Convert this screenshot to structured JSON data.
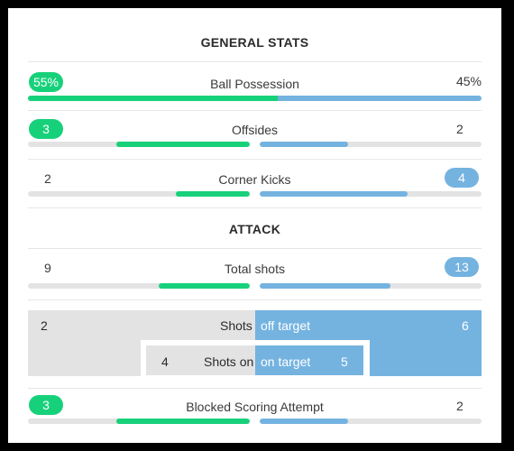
{
  "general": {
    "title": "GENERAL STATS",
    "possession": {
      "label": "Ball Possession",
      "home": "55%",
      "away": "45%",
      "home_share": 0.55
    },
    "offsides": {
      "label": "Offsides",
      "home": "3",
      "away": "2",
      "home_share": 0.6,
      "away_share": 0.4
    },
    "corners": {
      "label": "Corner Kicks",
      "home": "2",
      "away": "4",
      "home_share": 0.333,
      "away_share": 0.667
    }
  },
  "attack": {
    "title": "ATTACK",
    "total_shots": {
      "label": "Total shots",
      "home": "9",
      "away": "13",
      "home_share": 0.41,
      "away_share": 0.59
    },
    "shots_off": {
      "label_left": "Shots",
      "label_right": "off target",
      "home": "2",
      "away": "6"
    },
    "shots_on": {
      "label_left": "Shots on",
      "label_right": "on target",
      "home": "4",
      "away": "5"
    },
    "blocked": {
      "label": "Blocked Scoring Attempt",
      "home": "3",
      "away": "2",
      "home_share": 0.6,
      "away_share": 0.4
    }
  },
  "colors": {
    "home": "#17d17a",
    "away": "#74b3e0",
    "track": "#e3e3e3"
  }
}
